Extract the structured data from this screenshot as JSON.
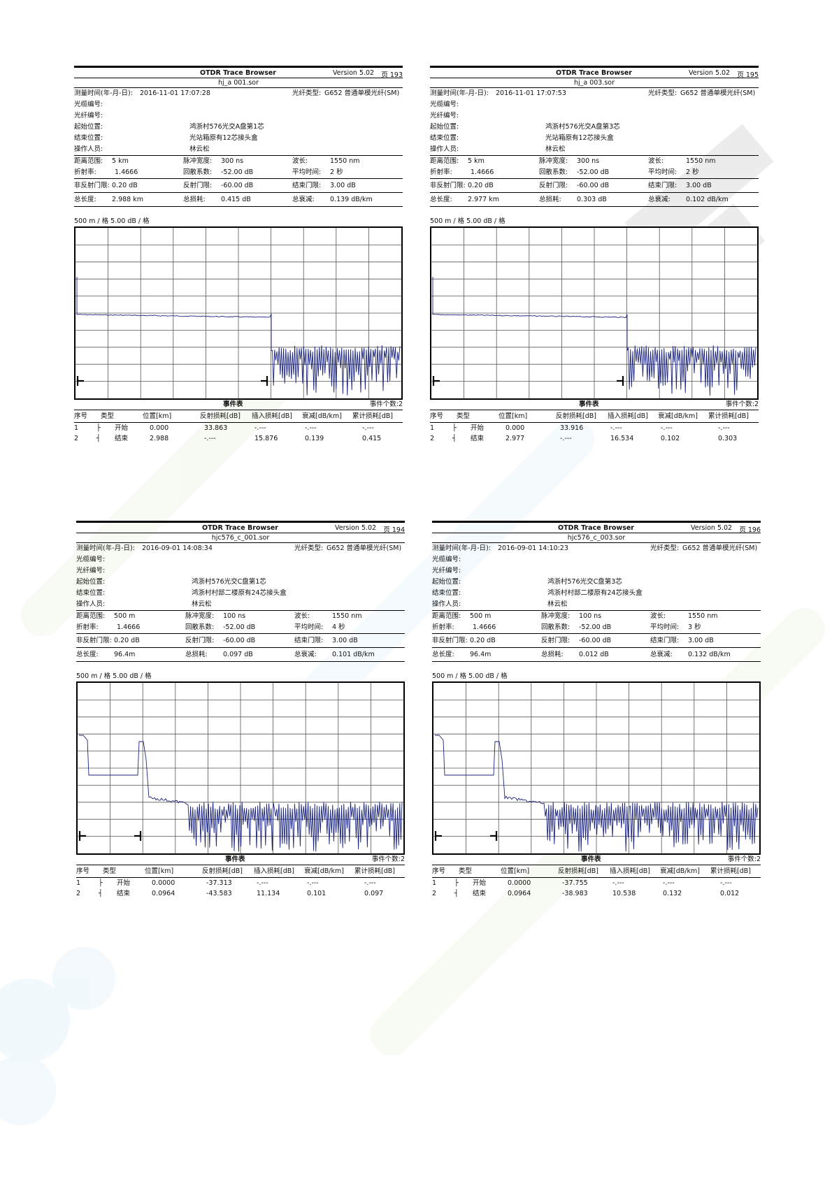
{
  "common": {
    "app_title": "OTDR Trace Browser",
    "version": "Version 5.02",
    "labels": {
      "measure_time": "测量时间(年-月-日):",
      "cable_no": "光缆编号:",
      "fiber_no": "光纤编号:",
      "start_loc": "起始位置:",
      "end_loc": "结束位置:",
      "operator": "操作人员:",
      "fiber_type": "光纤类型:",
      "range": "距离范围:",
      "pulse": "脉冲宽度:",
      "wavelength": "波长:",
      "ior": "折射率:",
      "backscatter": "回散系数:",
      "avg_time": "平均时间:",
      "nonrefl": "非反射门限:",
      "refl": "反射门限:",
      "end_thr": "结束门限:",
      "total_len": "总长度:",
      "total_loss": "总损耗:",
      "total_att": "总衰减:"
    },
    "event_table_title": "事件表",
    "table_headers": [
      "序号",
      "类型",
      "位置[km]",
      "反射损耗[dB]",
      "插入损耗[dB]",
      "衰减[dB/km]",
      "累计损耗[dB]"
    ]
  },
  "panels": [
    {
      "page": "页 193",
      "file": "hj_a 001.sor",
      "measure_time": "2016-11-01   17:07:28",
      "fiber_type": "G652 普通单模光纤(SM)",
      "start_loc": "鸿浙村576光交A盘第1芯",
      "end_loc": "光站箱原有12芯接头盒",
      "operator": "林云松",
      "range": "5 km",
      "pulse": "300 ns",
      "wavelength": "1550 nm",
      "ior": "1.4666",
      "backscatter": "-52.00 dB",
      "avg_time": "2 秒",
      "nonrefl": "0.20 dB",
      "refl": "-60.00 dB",
      "end_thr": "3.00 dB",
      "total_len": "2.988 km",
      "total_loss": "0.415 dB",
      "total_att": "0.139 dB/km",
      "scale": "500 m / 格     5.00 dB / 格",
      "event_count": "事件个数:2",
      "events": [
        {
          "no": "1",
          "sym": "├",
          "type": "开始",
          "pos": "0.000",
          "refl": "33.863",
          "ins": "-.---",
          "att": "-.---",
          "cum": "-.---"
        },
        {
          "no": "2",
          "sym": "┤",
          "type": "结束",
          "pos": "2.988",
          "refl": "-.---",
          "ins": "15.876",
          "att": "0.139",
          "cum": "0.415"
        }
      ],
      "trace": {
        "kind": "long",
        "end_km": 2.988
      }
    },
    {
      "page": "页 195",
      "file": "hj_a 003.sor",
      "measure_time": "2016-11-01   17:07:53",
      "fiber_type": "G652 普通单模光纤(SM)",
      "start_loc": "鸿浙村576光交A盘第3芯",
      "end_loc": "光站箱原有12芯接头盒",
      "operator": "林云松",
      "range": "5 km",
      "pulse": "300 ns",
      "wavelength": "1550 nm",
      "ior": "1.4666",
      "backscatter": "-52.00 dB",
      "avg_time": "2 秒",
      "nonrefl": "0.20 dB",
      "refl": "-60.00 dB",
      "end_thr": "3.00 dB",
      "total_len": "2.977 km",
      "total_loss": "0.303 dB",
      "total_att": "0.102 dB/km",
      "scale": "500 m / 格     5.00 dB / 格",
      "event_count": "事件个数:2",
      "events": [
        {
          "no": "1",
          "sym": "├",
          "type": "开始",
          "pos": "0.000",
          "refl": "33.916",
          "ins": "-.---",
          "att": "-.---",
          "cum": "-.---"
        },
        {
          "no": "2",
          "sym": "┤",
          "type": "结束",
          "pos": "2.977",
          "refl": "-.---",
          "ins": "16.534",
          "att": "0.102",
          "cum": "0.303"
        }
      ],
      "trace": {
        "kind": "long",
        "end_km": 2.977
      }
    },
    {
      "page": "页 194",
      "file": "hjc576_c_001.sor",
      "measure_time": "2016-09-01   14:08:34",
      "fiber_type": "G652 普通单模光纤(SM)",
      "start_loc": "鸿浙村576光交C盘第1芯",
      "end_loc": "鸿浙村村部二楼原有24芯接头盒",
      "operator": "林云松",
      "range": "500 m",
      "pulse": "100 ns",
      "wavelength": "1550 nm",
      "ior": "1.4666",
      "backscatter": "-52.00 dB",
      "avg_time": "4 秒",
      "nonrefl": "0.20 dB",
      "refl": "-60.00 dB",
      "end_thr": "3.00 dB",
      "total_len": "96.4m",
      "total_loss": "0.097 dB",
      "total_att": "0.101 dB/km",
      "scale": "500 m / 格     5.00 dB / 格",
      "event_count": "事件个数:2",
      "events": [
        {
          "no": "1",
          "sym": "├",
          "type": "开始",
          "pos": "0.0000",
          "refl": "-37.313",
          "ins": "-.---",
          "att": "-.---",
          "cum": "-.---"
        },
        {
          "no": "2",
          "sym": "┤",
          "type": "结束",
          "pos": "0.0964",
          "refl": "-43.583",
          "ins": "11.134",
          "att": "0.101",
          "cum": "0.097"
        }
      ],
      "trace": {
        "kind": "short",
        "end_km": 0.0964
      }
    },
    {
      "page": "页 196",
      "file": "hjc576_c_003.sor",
      "measure_time": "2016-09-01   14:10:23",
      "fiber_type": "G652 普通单模光纤(SM)",
      "start_loc": "鸿浙村576光交C盘第3芯",
      "end_loc": "鸿浙村村部二楼原有24芯接头盒",
      "operator": "林云松",
      "range": "500 m",
      "pulse": "100 ns",
      "wavelength": "1550 nm",
      "ior": "1.4666",
      "backscatter": "-52.00 dB",
      "avg_time": "3 秒",
      "nonrefl": "0.20 dB",
      "refl": "-60.00 dB",
      "end_thr": "3.00 dB",
      "total_len": "96.4m",
      "total_loss": "0.012 dB",
      "total_att": "0.132 dB/km",
      "scale": "500 m / 格     5.00 dB / 格",
      "event_count": "事件个数:2",
      "events": [
        {
          "no": "1",
          "sym": "├",
          "type": "开始",
          "pos": "0.0000",
          "refl": "-37.755",
          "ins": "-.---",
          "att": "-.---",
          "cum": "-.---"
        },
        {
          "no": "2",
          "sym": "┤",
          "type": "结束",
          "pos": "0.0964",
          "refl": "-38.983",
          "ins": "10.538",
          "att": "0.132",
          "cum": "0.012"
        }
      ],
      "trace": {
        "kind": "short",
        "end_km": 0.0964
      }
    }
  ],
  "colors": {
    "trace": "#1a237e",
    "grid": "#555555"
  }
}
